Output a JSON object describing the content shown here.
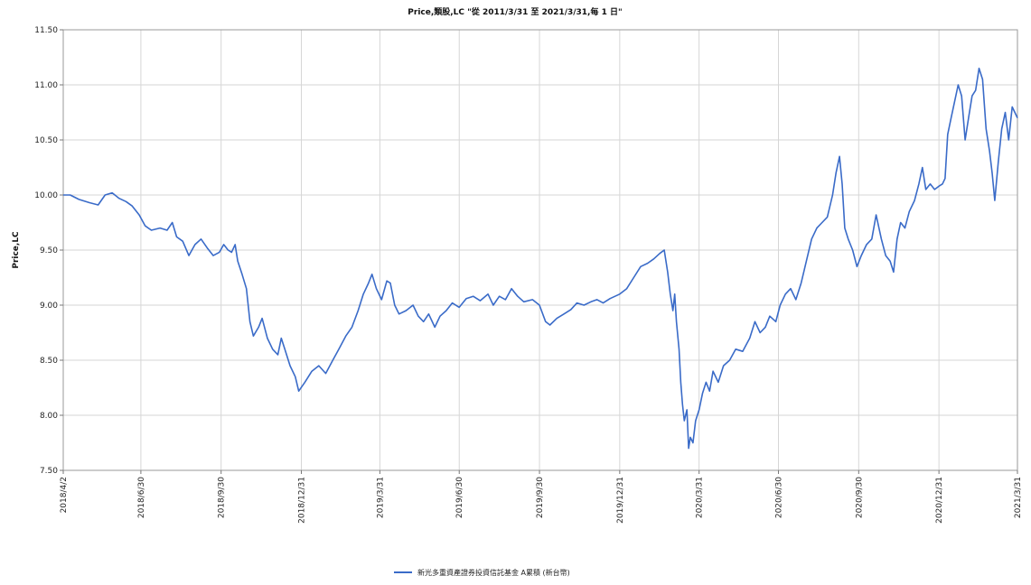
{
  "chart_data": {
    "type": "line",
    "title": "Price,類股,LC \"從 2011/3/31 至 2021/3/31,每 1 日\"",
    "xlabel": "",
    "ylabel": "Price,LC",
    "ylim": [
      7.5,
      11.5
    ],
    "y_ticks": [
      "11.50",
      "11.00",
      "10.50",
      "10.00",
      "9.50",
      "9.00",
      "8.50",
      "8.00",
      "7.50"
    ],
    "x_ticks": [
      "2018/4/2",
      "2018/6/30",
      "2018/9/30",
      "2018/12/31",
      "2019/3/31",
      "2019/6/30",
      "2019/9/30",
      "2019/12/31",
      "2020/3/31",
      "2020/6/30",
      "2020/9/30",
      "2020/12/31",
      "2021/3/31"
    ],
    "xlim": [
      "2018-04-02",
      "2021-03-31"
    ],
    "grid": true,
    "legend_position": "bottom-center",
    "color": "#3a6bc8",
    "series": [
      {
        "name": "新光多重資產證券投資信託基金 A累積 (新台幣)",
        "points": [
          [
            "2018-04-02",
            10.0
          ],
          [
            "2018-04-10",
            10.0
          ],
          [
            "2018-04-20",
            9.96
          ],
          [
            "2018-05-02",
            9.93
          ],
          [
            "2018-05-12",
            9.91
          ],
          [
            "2018-05-20",
            10.0
          ],
          [
            "2018-05-28",
            10.02
          ],
          [
            "2018-06-05",
            9.97
          ],
          [
            "2018-06-13",
            9.94
          ],
          [
            "2018-06-20",
            9.9
          ],
          [
            "2018-06-28",
            9.82
          ],
          [
            "2018-07-05",
            9.72
          ],
          [
            "2018-07-12",
            9.68
          ],
          [
            "2018-07-22",
            9.7
          ],
          [
            "2018-07-30",
            9.68
          ],
          [
            "2018-08-05",
            9.75
          ],
          [
            "2018-08-10",
            9.62
          ],
          [
            "2018-08-17",
            9.58
          ],
          [
            "2018-08-24",
            9.45
          ],
          [
            "2018-08-31",
            9.55
          ],
          [
            "2018-09-07",
            9.6
          ],
          [
            "2018-09-14",
            9.52
          ],
          [
            "2018-09-21",
            9.45
          ],
          [
            "2018-09-28",
            9.48
          ],
          [
            "2018-10-03",
            9.55
          ],
          [
            "2018-10-08",
            9.5
          ],
          [
            "2018-10-12",
            9.48
          ],
          [
            "2018-10-16",
            9.55
          ],
          [
            "2018-10-19",
            9.4
          ],
          [
            "2018-10-24",
            9.28
          ],
          [
            "2018-10-29",
            9.15
          ],
          [
            "2018-11-02",
            8.85
          ],
          [
            "2018-11-06",
            8.72
          ],
          [
            "2018-11-12",
            8.8
          ],
          [
            "2018-11-16",
            8.88
          ],
          [
            "2018-11-22",
            8.7
          ],
          [
            "2018-11-28",
            8.6
          ],
          [
            "2018-12-04",
            8.55
          ],
          [
            "2018-12-08",
            8.7
          ],
          [
            "2018-12-12",
            8.6
          ],
          [
            "2018-12-18",
            8.45
          ],
          [
            "2018-12-24",
            8.35
          ],
          [
            "2018-12-28",
            8.22
          ],
          [
            "2019-01-04",
            8.3
          ],
          [
            "2019-01-12",
            8.4
          ],
          [
            "2019-01-20",
            8.45
          ],
          [
            "2019-01-28",
            8.38
          ],
          [
            "2019-02-05",
            8.5
          ],
          [
            "2019-02-12",
            8.6
          ],
          [
            "2019-02-20",
            8.72
          ],
          [
            "2019-02-27",
            8.8
          ],
          [
            "2019-03-06",
            8.95
          ],
          [
            "2019-03-12",
            9.1
          ],
          [
            "2019-03-18",
            9.2
          ],
          [
            "2019-03-22",
            9.28
          ],
          [
            "2019-03-27",
            9.15
          ],
          [
            "2019-04-02",
            9.05
          ],
          [
            "2019-04-08",
            9.22
          ],
          [
            "2019-04-12",
            9.2
          ],
          [
            "2019-04-17",
            9.0
          ],
          [
            "2019-04-22",
            8.92
          ],
          [
            "2019-04-30",
            8.95
          ],
          [
            "2019-05-08",
            9.0
          ],
          [
            "2019-05-14",
            8.9
          ],
          [
            "2019-05-20",
            8.85
          ],
          [
            "2019-05-26",
            8.92
          ],
          [
            "2019-06-02",
            8.8
          ],
          [
            "2019-06-08",
            8.9
          ],
          [
            "2019-06-15",
            8.95
          ],
          [
            "2019-06-22",
            9.02
          ],
          [
            "2019-06-30",
            8.98
          ],
          [
            "2019-07-08",
            9.06
          ],
          [
            "2019-07-16",
            9.08
          ],
          [
            "2019-07-24",
            9.04
          ],
          [
            "2019-08-02",
            9.1
          ],
          [
            "2019-08-08",
            9.0
          ],
          [
            "2019-08-15",
            9.08
          ],
          [
            "2019-08-22",
            9.05
          ],
          [
            "2019-08-29",
            9.15
          ],
          [
            "2019-09-05",
            9.08
          ],
          [
            "2019-09-12",
            9.03
          ],
          [
            "2019-09-22",
            9.05
          ],
          [
            "2019-09-30",
            9.0
          ],
          [
            "2019-10-07",
            8.85
          ],
          [
            "2019-10-12",
            8.82
          ],
          [
            "2019-10-20",
            8.88
          ],
          [
            "2019-10-28",
            8.92
          ],
          [
            "2019-11-05",
            8.96
          ],
          [
            "2019-11-12",
            9.02
          ],
          [
            "2019-11-20",
            9.0
          ],
          [
            "2019-11-28",
            9.03
          ],
          [
            "2019-12-05",
            9.05
          ],
          [
            "2019-12-12",
            9.02
          ],
          [
            "2019-12-20",
            9.06
          ],
          [
            "2019-12-31",
            9.1
          ],
          [
            "2020-01-08",
            9.15
          ],
          [
            "2020-01-16",
            9.25
          ],
          [
            "2020-01-24",
            9.35
          ],
          [
            "2020-02-01",
            9.38
          ],
          [
            "2020-02-08",
            9.42
          ],
          [
            "2020-02-15",
            9.47
          ],
          [
            "2020-02-20",
            9.5
          ],
          [
            "2020-02-24",
            9.3
          ],
          [
            "2020-02-27",
            9.1
          ],
          [
            "2020-03-01",
            8.95
          ],
          [
            "2020-03-03",
            9.1
          ],
          [
            "2020-03-05",
            8.85
          ],
          [
            "2020-03-08",
            8.6
          ],
          [
            "2020-03-10",
            8.3
          ],
          [
            "2020-03-12",
            8.1
          ],
          [
            "2020-03-14",
            7.95
          ],
          [
            "2020-03-17",
            8.05
          ],
          [
            "2020-03-19",
            7.7
          ],
          [
            "2020-03-21",
            7.8
          ],
          [
            "2020-03-24",
            7.75
          ],
          [
            "2020-03-27",
            7.95
          ],
          [
            "2020-03-31",
            8.05
          ],
          [
            "2020-04-04",
            8.2
          ],
          [
            "2020-04-08",
            8.3
          ],
          [
            "2020-04-12",
            8.22
          ],
          [
            "2020-04-16",
            8.4
          ],
          [
            "2020-04-22",
            8.3
          ],
          [
            "2020-04-28",
            8.45
          ],
          [
            "2020-05-05",
            8.5
          ],
          [
            "2020-05-12",
            8.6
          ],
          [
            "2020-05-20",
            8.58
          ],
          [
            "2020-05-28",
            8.7
          ],
          [
            "2020-06-03",
            8.85
          ],
          [
            "2020-06-09",
            8.75
          ],
          [
            "2020-06-15",
            8.8
          ],
          [
            "2020-06-20",
            8.9
          ],
          [
            "2020-06-27",
            8.85
          ],
          [
            "2020-07-02",
            9.0
          ],
          [
            "2020-07-08",
            9.1
          ],
          [
            "2020-07-14",
            9.15
          ],
          [
            "2020-07-20",
            9.05
          ],
          [
            "2020-07-26",
            9.2
          ],
          [
            "2020-08-01",
            9.4
          ],
          [
            "2020-08-07",
            9.6
          ],
          [
            "2020-08-13",
            9.7
          ],
          [
            "2020-08-19",
            9.75
          ],
          [
            "2020-08-25",
            9.8
          ],
          [
            "2020-08-31",
            10.0
          ],
          [
            "2020-09-04",
            10.2
          ],
          [
            "2020-09-08",
            10.35
          ],
          [
            "2020-09-11",
            10.1
          ],
          [
            "2020-09-14",
            9.7
          ],
          [
            "2020-09-18",
            9.6
          ],
          [
            "2020-09-23",
            9.5
          ],
          [
            "2020-09-28",
            9.35
          ],
          [
            "2020-10-03",
            9.45
          ],
          [
            "2020-10-09",
            9.55
          ],
          [
            "2020-10-15",
            9.6
          ],
          [
            "2020-10-20",
            9.82
          ],
          [
            "2020-10-26",
            9.6
          ],
          [
            "2020-10-31",
            9.45
          ],
          [
            "2020-11-05",
            9.4
          ],
          [
            "2020-11-09",
            9.3
          ],
          [
            "2020-11-13",
            9.6
          ],
          [
            "2020-11-17",
            9.75
          ],
          [
            "2020-11-22",
            9.7
          ],
          [
            "2020-11-27",
            9.85
          ],
          [
            "2020-12-03",
            9.95
          ],
          [
            "2020-12-08",
            10.1
          ],
          [
            "2020-12-12",
            10.25
          ],
          [
            "2020-12-16",
            10.05
          ],
          [
            "2020-12-21",
            10.1
          ],
          [
            "2020-12-26",
            10.05
          ],
          [
            "2020-12-31",
            10.08
          ],
          [
            "2021-01-04",
            10.1
          ],
          [
            "2021-01-07",
            10.15
          ],
          [
            "2021-01-10",
            10.55
          ],
          [
            "2021-01-14",
            10.7
          ],
          [
            "2021-01-18",
            10.85
          ],
          [
            "2021-01-22",
            11.0
          ],
          [
            "2021-01-26",
            10.9
          ],
          [
            "2021-01-30",
            10.5
          ],
          [
            "2021-02-03",
            10.7
          ],
          [
            "2021-02-07",
            10.9
          ],
          [
            "2021-02-11",
            10.95
          ],
          [
            "2021-02-15",
            11.15
          ],
          [
            "2021-02-19",
            11.05
          ],
          [
            "2021-02-23",
            10.6
          ],
          [
            "2021-02-27",
            10.4
          ],
          [
            "2021-03-02",
            10.2
          ],
          [
            "2021-03-05",
            9.95
          ],
          [
            "2021-03-09",
            10.3
          ],
          [
            "2021-03-13",
            10.6
          ],
          [
            "2021-03-17",
            10.75
          ],
          [
            "2021-03-21",
            10.5
          ],
          [
            "2021-03-25",
            10.8
          ],
          [
            "2021-03-31",
            10.7
          ]
        ]
      }
    ]
  }
}
